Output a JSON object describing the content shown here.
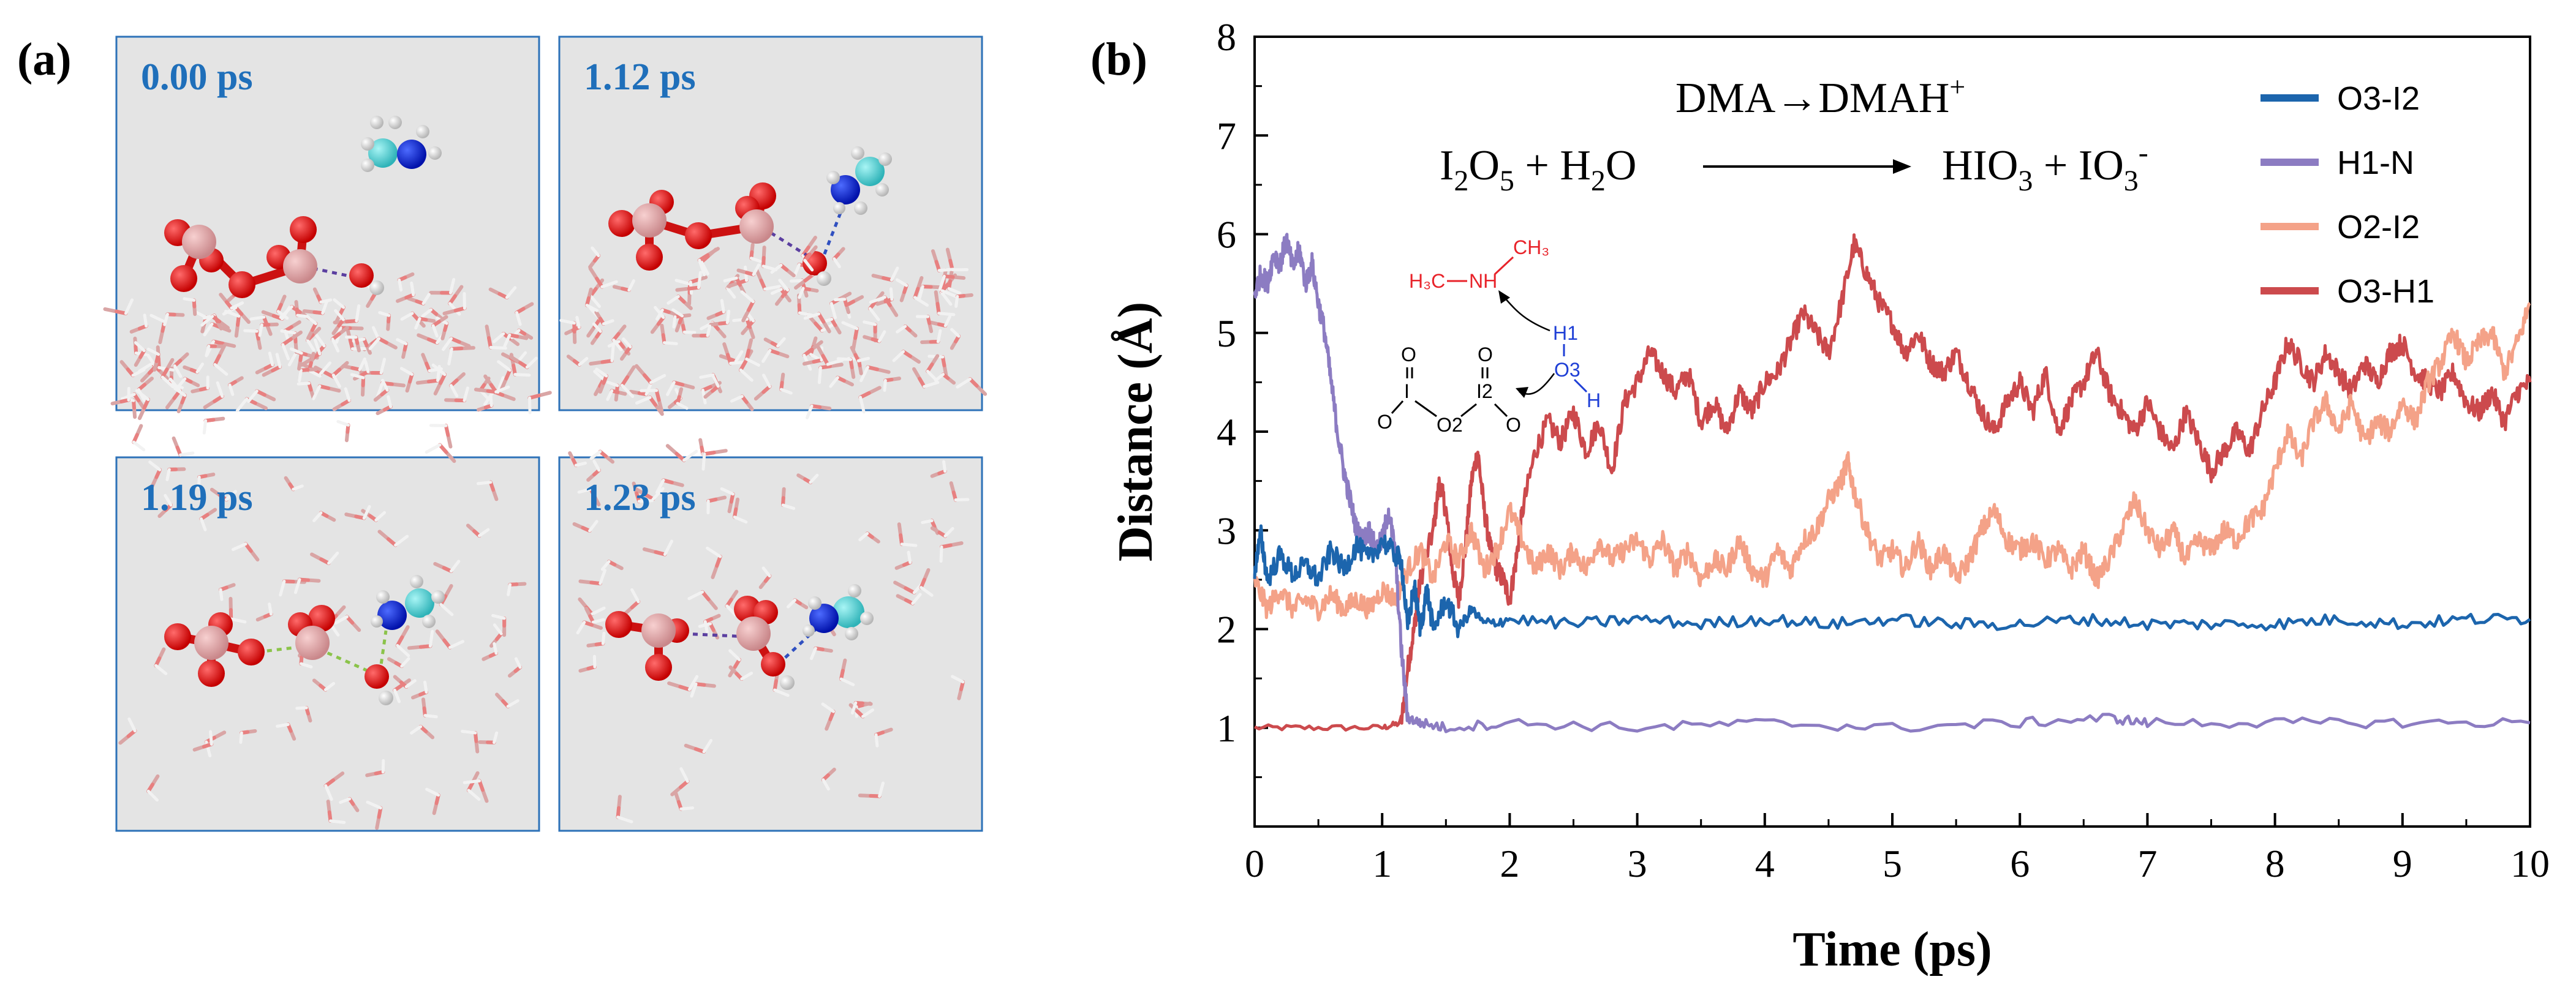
{
  "panel_a": {
    "label": "(a)",
    "snapshots": [
      {
        "time": "0.00 ps"
      },
      {
        "time": "1.12 ps"
      },
      {
        "time": "1.19 ps"
      },
      {
        "time": "1.23 ps"
      }
    ]
  },
  "panel_b": {
    "label": "(b)"
  },
  "chart_data": {
    "type": "line",
    "xlabel": "Time (ps)",
    "ylabel": "Distance (Å)",
    "xlim": [
      0,
      10
    ],
    "ylim": [
      0,
      8
    ],
    "xticks": [
      0,
      1,
      2,
      3,
      4,
      5,
      6,
      7,
      8,
      9,
      10
    ],
    "yticks": [
      1,
      2,
      3,
      4,
      5,
      6,
      7,
      8
    ],
    "legend_position": "top-right",
    "annotations": {
      "reaction_top": "DMA→DMAH",
      "reaction_top_sup": "+",
      "eq_reactant_1": "I",
      "eq_reactant_1_sub": "2",
      "eq_reactant_1_rest": "O",
      "eq_reactant_1_sub2": "5",
      "eq_reactant_2": " + H",
      "eq_reactant_2_sub": "2",
      "eq_reactant_2_rest": "O",
      "eq_product_1": "HIO",
      "eq_product_1_sub": "3",
      "eq_product_2": " + IO",
      "eq_product_2_sub": "3",
      "eq_product_2_sup": "-",
      "mol_labels": {
        "h3c": "H₃C",
        "nh": "NH",
        "ch3": "CH₃",
        "h1": "H1",
        "o3": "O3",
        "h": "H",
        "i2": "I2",
        "o2": "O2",
        "o": "O",
        "i": "I"
      }
    },
    "series": [
      {
        "name": "O3-I2",
        "color": "#1c65ad",
        "points": [
          [
            0,
            2.6
          ],
          [
            0.05,
            2.95
          ],
          [
            0.1,
            2.5
          ],
          [
            0.2,
            2.75
          ],
          [
            0.3,
            2.55
          ],
          [
            0.4,
            2.65
          ],
          [
            0.5,
            2.5
          ],
          [
            0.6,
            2.8
          ],
          [
            0.7,
            2.6
          ],
          [
            0.8,
            2.85
          ],
          [
            0.9,
            2.7
          ],
          [
            1.0,
            2.9
          ],
          [
            1.1,
            2.75
          ],
          [
            1.15,
            2.7
          ],
          [
            1.2,
            2.0
          ],
          [
            1.25,
            2.45
          ],
          [
            1.3,
            2.0
          ],
          [
            1.35,
            2.4
          ],
          [
            1.4,
            2.0
          ],
          [
            1.5,
            2.3
          ],
          [
            1.6,
            2.0
          ],
          [
            1.7,
            2.2
          ],
          [
            1.8,
            2.05
          ],
          [
            2.0,
            2.1
          ],
          [
            2.5,
            2.05
          ],
          [
            3.0,
            2.1
          ],
          [
            3.5,
            2.05
          ],
          [
            4.0,
            2.1
          ],
          [
            4.5,
            2.05
          ],
          [
            5.0,
            2.1
          ],
          [
            5.5,
            2.05
          ],
          [
            6.0,
            2.05
          ],
          [
            6.5,
            2.1
          ],
          [
            7.0,
            2.05
          ],
          [
            7.5,
            2.05
          ],
          [
            8.0,
            2.05
          ],
          [
            8.5,
            2.1
          ],
          [
            9.0,
            2.05
          ],
          [
            9.5,
            2.1
          ],
          [
            10.0,
            2.1
          ]
        ]
      },
      {
        "name": "H1-N",
        "color": "#8c7cc2",
        "points": [
          [
            0,
            5.4
          ],
          [
            0.05,
            5.6
          ],
          [
            0.1,
            5.5
          ],
          [
            0.15,
            5.8
          ],
          [
            0.2,
            5.7
          ],
          [
            0.25,
            5.95
          ],
          [
            0.3,
            5.65
          ],
          [
            0.35,
            5.85
          ],
          [
            0.4,
            5.5
          ],
          [
            0.45,
            5.7
          ],
          [
            0.5,
            5.3
          ],
          [
            0.55,
            5.0
          ],
          [
            0.6,
            4.5
          ],
          [
            0.65,
            4.0
          ],
          [
            0.7,
            3.6
          ],
          [
            0.75,
            3.3
          ],
          [
            0.8,
            3.0
          ],
          [
            0.85,
            2.9
          ],
          [
            0.9,
            3.0
          ],
          [
            0.95,
            2.8
          ],
          [
            1.0,
            2.9
          ],
          [
            1.05,
            3.2
          ],
          [
            1.1,
            2.8
          ],
          [
            1.15,
            1.8
          ],
          [
            1.2,
            1.1
          ],
          [
            1.3,
            1.05
          ],
          [
            1.5,
            1.0
          ],
          [
            2.0,
            1.05
          ],
          [
            3.0,
            1.0
          ],
          [
            4.0,
            1.05
          ],
          [
            5.0,
            1.0
          ],
          [
            6.0,
            1.05
          ],
          [
            6.7,
            1.1
          ],
          [
            7.0,
            1.05
          ],
          [
            8.0,
            1.05
          ],
          [
            9.0,
            1.05
          ],
          [
            10.0,
            1.05
          ]
        ]
      },
      {
        "name": "O2-I2",
        "color": "#f4a288",
        "points": [
          [
            0,
            2.5
          ],
          [
            0.1,
            2.2
          ],
          [
            0.2,
            2.4
          ],
          [
            0.3,
            2.2
          ],
          [
            0.4,
            2.3
          ],
          [
            0.5,
            2.2
          ],
          [
            0.6,
            2.35
          ],
          [
            0.7,
            2.2
          ],
          [
            0.8,
            2.3
          ],
          [
            0.9,
            2.2
          ],
          [
            1.0,
            2.4
          ],
          [
            1.1,
            2.3
          ],
          [
            1.2,
            2.6
          ],
          [
            1.3,
            2.8
          ],
          [
            1.4,
            2.5
          ],
          [
            1.5,
            2.9
          ],
          [
            1.6,
            2.7
          ],
          [
            1.7,
            3.0
          ],
          [
            1.8,
            2.6
          ],
          [
            1.9,
            2.8
          ],
          [
            2.0,
            3.2
          ],
          [
            2.1,
            2.9
          ],
          [
            2.2,
            2.6
          ],
          [
            2.3,
            2.8
          ],
          [
            2.4,
            2.6
          ],
          [
            2.5,
            2.8
          ],
          [
            2.6,
            2.6
          ],
          [
            2.7,
            2.9
          ],
          [
            2.8,
            2.7
          ],
          [
            2.9,
            2.8
          ],
          [
            3.0,
            2.9
          ],
          [
            3.1,
            2.7
          ],
          [
            3.2,
            2.9
          ],
          [
            3.3,
            2.6
          ],
          [
            3.4,
            2.8
          ],
          [
            3.5,
            2.5
          ],
          [
            3.6,
            2.7
          ],
          [
            3.7,
            2.6
          ],
          [
            3.8,
            2.9
          ],
          [
            3.9,
            2.6
          ],
          [
            4.0,
            2.5
          ],
          [
            4.1,
            2.8
          ],
          [
            4.2,
            2.6
          ],
          [
            4.3,
            2.9
          ],
          [
            4.4,
            3.0
          ],
          [
            4.5,
            3.3
          ],
          [
            4.6,
            3.5
          ],
          [
            4.65,
            3.7
          ],
          [
            4.7,
            3.4
          ],
          [
            4.8,
            3.0
          ],
          [
            4.9,
            2.7
          ],
          [
            5.0,
            2.8
          ],
          [
            5.1,
            2.6
          ],
          [
            5.2,
            2.9
          ],
          [
            5.3,
            2.6
          ],
          [
            5.4,
            2.8
          ],
          [
            5.5,
            2.5
          ],
          [
            5.6,
            2.7
          ],
          [
            5.7,
            3.0
          ],
          [
            5.8,
            3.2
          ],
          [
            5.9,
            2.9
          ],
          [
            6.0,
            2.8
          ],
          [
            6.1,
            2.9
          ],
          [
            6.2,
            2.7
          ],
          [
            6.3,
            2.8
          ],
          [
            6.4,
            2.6
          ],
          [
            6.5,
            2.8
          ],
          [
            6.6,
            2.5
          ],
          [
            6.7,
            2.7
          ],
          [
            6.8,
            3.0
          ],
          [
            6.9,
            3.3
          ],
          [
            7.0,
            3.0
          ],
          [
            7.1,
            2.8
          ],
          [
            7.2,
            3.0
          ],
          [
            7.3,
            2.7
          ],
          [
            7.4,
            2.9
          ],
          [
            7.5,
            2.8
          ],
          [
            7.6,
            3.0
          ],
          [
            7.7,
            2.9
          ],
          [
            7.8,
            3.1
          ],
          [
            7.9,
            3.2
          ],
          [
            8.0,
            3.6
          ],
          [
            8.1,
            4.0
          ],
          [
            8.2,
            3.7
          ],
          [
            8.3,
            4.1
          ],
          [
            8.4,
            4.3
          ],
          [
            8.5,
            4.0
          ],
          [
            8.6,
            4.3
          ],
          [
            8.7,
            3.9
          ],
          [
            8.8,
            4.1
          ],
          [
            8.9,
            4.0
          ],
          [
            9.0,
            4.3
          ],
          [
            9.1,
            4.1
          ],
          [
            9.2,
            4.5
          ],
          [
            9.3,
            4.7
          ],
          [
            9.4,
            5.0
          ],
          [
            9.5,
            4.7
          ],
          [
            9.6,
            4.9
          ],
          [
            9.7,
            5.0
          ],
          [
            9.8,
            4.6
          ],
          [
            9.9,
            4.9
          ],
          [
            10.0,
            5.3
          ]
        ]
      },
      {
        "name": "O3-H1",
        "color": "#cc4a4d",
        "points": [
          [
            0,
            1.0
          ],
          [
            0.5,
            1.0
          ],
          [
            1.0,
            1.0
          ],
          [
            1.15,
            1.05
          ],
          [
            1.2,
            1.6
          ],
          [
            1.25,
            2.0
          ],
          [
            1.3,
            2.5
          ],
          [
            1.4,
            3.0
          ],
          [
            1.45,
            3.5
          ],
          [
            1.5,
            3.2
          ],
          [
            1.55,
            2.6
          ],
          [
            1.6,
            2.3
          ],
          [
            1.65,
            2.8
          ],
          [
            1.7,
            3.5
          ],
          [
            1.75,
            3.8
          ],
          [
            1.8,
            3.2
          ],
          [
            1.85,
            2.8
          ],
          [
            1.9,
            2.6
          ],
          [
            1.95,
            2.5
          ],
          [
            2.0,
            2.3
          ],
          [
            2.05,
            2.7
          ],
          [
            2.1,
            3.2
          ],
          [
            2.2,
            3.8
          ],
          [
            2.3,
            4.1
          ],
          [
            2.4,
            3.9
          ],
          [
            2.5,
            4.2
          ],
          [
            2.6,
            3.8
          ],
          [
            2.7,
            4.1
          ],
          [
            2.8,
            3.6
          ],
          [
            2.9,
            4.3
          ],
          [
            3.0,
            4.5
          ],
          [
            3.1,
            4.8
          ],
          [
            3.2,
            4.6
          ],
          [
            3.3,
            4.4
          ],
          [
            3.4,
            4.6
          ],
          [
            3.5,
            4.1
          ],
          [
            3.6,
            4.3
          ],
          [
            3.7,
            4.0
          ],
          [
            3.8,
            4.4
          ],
          [
            3.9,
            4.2
          ],
          [
            4.0,
            4.5
          ],
          [
            4.1,
            4.6
          ],
          [
            4.2,
            4.9
          ],
          [
            4.3,
            5.2
          ],
          [
            4.4,
            5.0
          ],
          [
            4.5,
            4.8
          ],
          [
            4.6,
            5.3
          ],
          [
            4.7,
            5.9
          ],
          [
            4.8,
            5.6
          ],
          [
            4.9,
            5.3
          ],
          [
            5.0,
            5.1
          ],
          [
            5.1,
            4.8
          ],
          [
            5.2,
            5.0
          ],
          [
            5.3,
            4.7
          ],
          [
            5.4,
            4.6
          ],
          [
            5.5,
            4.8
          ],
          [
            5.6,
            4.5
          ],
          [
            5.7,
            4.2
          ],
          [
            5.8,
            4.0
          ],
          [
            5.9,
            4.3
          ],
          [
            6.0,
            4.5
          ],
          [
            6.1,
            4.2
          ],
          [
            6.2,
            4.6
          ],
          [
            6.3,
            4.0
          ],
          [
            6.4,
            4.3
          ],
          [
            6.5,
            4.5
          ],
          [
            6.6,
            4.8
          ],
          [
            6.7,
            4.4
          ],
          [
            6.8,
            4.2
          ],
          [
            6.9,
            4.0
          ],
          [
            7.0,
            4.3
          ],
          [
            7.1,
            4.0
          ],
          [
            7.2,
            3.8
          ],
          [
            7.3,
            4.2
          ],
          [
            7.4,
            3.9
          ],
          [
            7.5,
            3.6
          ],
          [
            7.6,
            3.8
          ],
          [
            7.7,
            4.0
          ],
          [
            7.8,
            3.8
          ],
          [
            7.9,
            4.2
          ],
          [
            8.0,
            4.5
          ],
          [
            8.1,
            4.9
          ],
          [
            8.2,
            4.7
          ],
          [
            8.3,
            4.5
          ],
          [
            8.4,
            4.8
          ],
          [
            8.5,
            4.6
          ],
          [
            8.6,
            4.4
          ],
          [
            8.7,
            4.7
          ],
          [
            8.8,
            4.5
          ],
          [
            8.9,
            4.8
          ],
          [
            9.0,
            4.9
          ],
          [
            9.1,
            4.6
          ],
          [
            9.2,
            4.5
          ],
          [
            9.3,
            4.4
          ],
          [
            9.4,
            4.6
          ],
          [
            9.5,
            4.3
          ],
          [
            9.6,
            4.2
          ],
          [
            9.7,
            4.4
          ],
          [
            9.8,
            4.1
          ],
          [
            9.9,
            4.4
          ],
          [
            10.0,
            4.5
          ]
        ]
      }
    ]
  }
}
